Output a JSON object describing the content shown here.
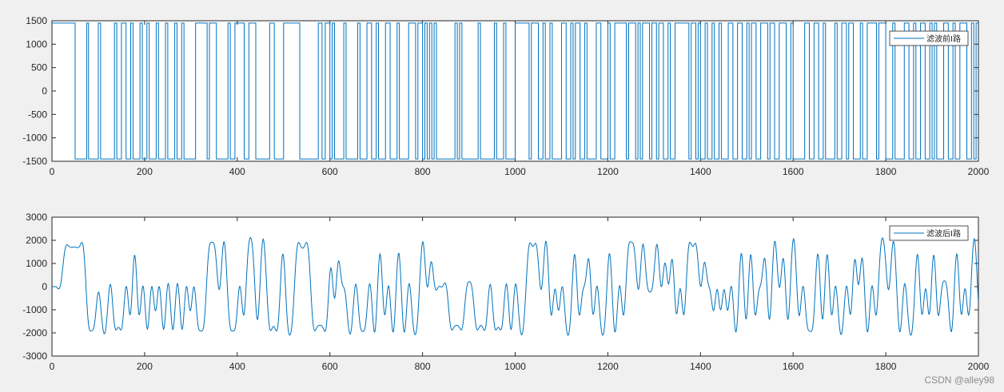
{
  "chart_data": [
    {
      "type": "line",
      "xlim": [
        0,
        2000
      ],
      "ylim": [
        -1500,
        1500
      ],
      "xticks": [
        0,
        200,
        400,
        600,
        800,
        1000,
        1200,
        1400,
        1600,
        1800,
        2000
      ],
      "yticks": [
        -1500,
        -1000,
        -500,
        0,
        500,
        1000,
        1500
      ],
      "xtick_labels": [
        "0",
        "200",
        "400",
        "600",
        "800",
        "1000",
        "1200",
        "1400",
        "1600",
        "1800",
        "2000"
      ],
      "ytick_labels": [
        "-1500",
        "-1000",
        "-500",
        "0",
        "500",
        "1000",
        "1500"
      ],
      "grid": false,
      "legend_position": "top-right",
      "line_color": "#0072bd",
      "series": [
        {
          "name": "滤波前I路",
          "amplitude": 1450,
          "start_level": 1,
          "transitions_x": [
            50,
            75,
            79,
            100,
            105,
            135,
            140,
            150,
            160,
            170,
            175,
            190,
            195,
            205,
            210,
            225,
            230,
            245,
            250,
            265,
            270,
            280,
            285,
            310,
            335,
            340,
            355,
            380,
            385,
            395,
            415,
            425,
            440,
            470,
            480,
            500,
            535,
            575,
            583,
            590,
            600,
            605,
            610,
            630,
            635,
            660,
            665,
            680,
            690,
            700,
            705,
            720,
            730,
            745,
            750,
            770,
            785,
            790,
            800,
            805,
            810,
            815,
            820,
            825,
            830,
            870,
            875,
            880,
            885,
            920,
            925,
            955,
            960,
            975,
            980,
            1000,
            1030,
            1035,
            1050,
            1060,
            1065,
            1075,
            1080,
            1100,
            1110,
            1120,
            1125,
            1130,
            1140,
            1150,
            1155,
            1175,
            1185,
            1200,
            1205,
            1215,
            1240,
            1245,
            1260,
            1265,
            1270,
            1275,
            1290,
            1295,
            1305,
            1310,
            1320,
            1330,
            1335,
            1345,
            1375,
            1380,
            1390,
            1395,
            1400,
            1410,
            1415,
            1425,
            1430,
            1440,
            1445,
            1460,
            1470,
            1480,
            1490,
            1500,
            1505,
            1510,
            1520,
            1530,
            1545,
            1550,
            1560,
            1570,
            1585,
            1595,
            1600,
            1625,
            1635,
            1645,
            1655,
            1665,
            1670,
            1690,
            1695,
            1705,
            1715,
            1720,
            1730,
            1745,
            1750,
            1760,
            1780,
            1785,
            1800,
            1815,
            1820,
            1840,
            1850,
            1860,
            1865,
            1875,
            1885,
            1895,
            1900,
            1905,
            1910,
            1925,
            1935,
            1945,
            1950,
            1960,
            1975,
            1985,
            1990,
            1995
          ]
        }
      ]
    },
    {
      "type": "line",
      "xlim": [
        0,
        2000
      ],
      "ylim": [
        -3000,
        3000
      ],
      "xticks": [
        0,
        200,
        400,
        600,
        800,
        1000,
        1200,
        1400,
        1600,
        1800,
        2000
      ],
      "yticks": [
        -3000,
        -2000,
        -1000,
        0,
        1000,
        2000,
        3000
      ],
      "xtick_labels": [
        "0",
        "200",
        "400",
        "600",
        "800",
        "1000",
        "1200",
        "1400",
        "1600",
        "1800",
        "2000"
      ],
      "ytick_labels": [
        "-3000",
        "-2000",
        "-1000",
        "0",
        "1000",
        "2000",
        "3000"
      ],
      "grid": false,
      "legend_position": "top-right",
      "line_color": "#0072bd",
      "series": [
        {
          "name": "滤波后I路",
          "amplitude": 1450,
          "start_value": 0,
          "filter_delay": 24,
          "filter_span": 24,
          "overshoot": 0.38
        }
      ]
    }
  ],
  "watermark": "CSDN @alley98"
}
